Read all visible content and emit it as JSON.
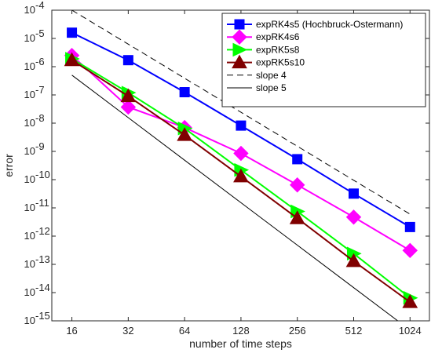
{
  "chart_data": {
    "type": "line",
    "xscale": "log2",
    "yscale": "log10",
    "xlabel": "number of time steps",
    "ylabel": "error",
    "xlim": [
      12.5,
      1300
    ],
    "ylim": [
      1e-15,
      0.0001
    ],
    "x_ticks": [
      16,
      32,
      64,
      128,
      256,
      512,
      1024
    ],
    "x_tick_labels": [
      "16",
      "32",
      "64",
      "128",
      "256",
      "512",
      "1024"
    ],
    "y_tick_exponents": [
      -15,
      -14,
      -13,
      -12,
      -11,
      -10,
      -9,
      -8,
      -7,
      -6,
      -5,
      -4
    ],
    "y_tick_base": "10",
    "grid": false,
    "legend_position": "top-right",
    "x": [
      16,
      32,
      64,
      128,
      256,
      512,
      1024
    ],
    "series": [
      {
        "name": "expRK4s5 (Hochbruck-Ostermann)",
        "color": "#0000ff",
        "marker": "square",
        "values": [
          1.6e-05,
          1.7e-06,
          1.25e-07,
          8.2e-09,
          5.3e-10,
          3.2e-11,
          2.1e-12
        ]
      },
      {
        "name": "expRK4s6",
        "color": "#ff00ff",
        "marker": "diamond",
        "values": [
          2.5e-06,
          3.7e-08,
          7e-09,
          8.5e-10,
          6.5e-11,
          4.7e-12,
          3.1e-13
        ]
      },
      {
        "name": "expRK5s8",
        "color": "#00ff00",
        "marker": "triangle-right",
        "values": [
          1.9e-06,
          1.2e-07,
          6.5e-09,
          2.2e-10,
          7.5e-12,
          2.4e-13,
          6.5e-15
        ]
      },
      {
        "name": "expRK5s10",
        "color": "#800000",
        "marker": "triangle-up",
        "values": [
          1.7e-06,
          9e-08,
          3.8e-09,
          1.3e-10,
          4.3e-12,
          1.3e-13,
          4.6e-15
        ]
      },
      {
        "name": "slope 4",
        "color": "#000000",
        "marker": "none",
        "dash": "dashed",
        "values": [
          0.0001,
          6.25e-06,
          3.9e-07,
          2.44e-08,
          1.53e-09,
          9.5e-11,
          6e-12
        ]
      },
      {
        "name": "slope 5",
        "color": "#000000",
        "marker": "none",
        "dash": "solid",
        "values": [
          5e-07,
          1.56e-08,
          4.9e-10,
          1.53e-11,
          4.8e-13,
          1.5e-14,
          4.7e-16
        ]
      }
    ]
  }
}
